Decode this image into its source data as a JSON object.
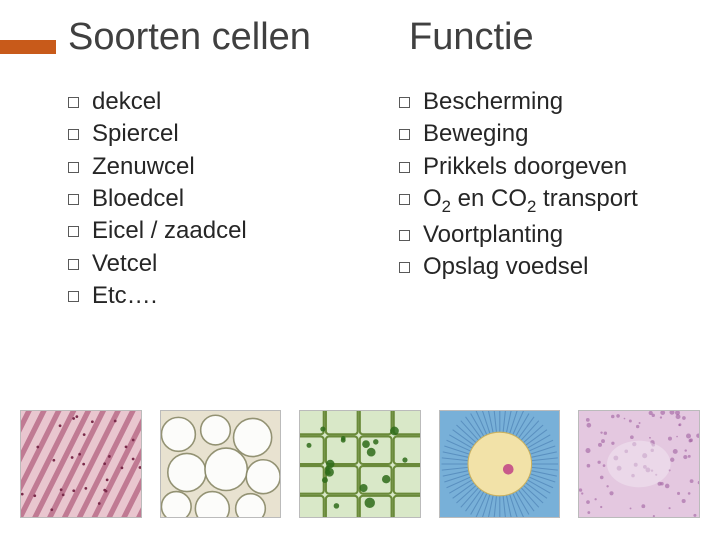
{
  "headings": {
    "left": "Soorten cellen",
    "right": "Functie"
  },
  "accent_color": "#c85a1a",
  "text_color": "#404040",
  "list_fontsize": 24,
  "title_fontsize": 38,
  "left_list": [
    "dekcel",
    "Spiercel",
    "Zenuwcel",
    "Bloedcel",
    "Eicel / zaadcel",
    "Vetcel",
    "Etc…."
  ],
  "right_list": [
    "Bescherming",
    "Beweging",
    "Prikkels doorgeven",
    "O₂ en CO₂ transport",
    "Voortplanting",
    "Opslag voedsel"
  ],
  "images": [
    {
      "name": "muscle-tissue",
      "bg": "#e9c6cf",
      "pattern": "diagonal-fibers",
      "stroke": "#b05a7a",
      "accent": "#7a2a4a"
    },
    {
      "name": "fat-cells",
      "bg": "#e8e2d0",
      "pattern": "bubbles",
      "stroke": "#8a8a6a",
      "fill": "#ffffff"
    },
    {
      "name": "plant-cells",
      "bg": "#d9e8c8",
      "pattern": "green-brick",
      "stroke": "#6a8a3a",
      "accent": "#2e6b1a"
    },
    {
      "name": "egg-cell",
      "bg": "#78b0d8",
      "pattern": "radial-egg",
      "inner": "#f2e2a8",
      "nucleus": "#c85a8a"
    },
    {
      "name": "epithelial",
      "bg": "#e4c8e0",
      "pattern": "speckled",
      "accent": "#a060a0"
    }
  ]
}
